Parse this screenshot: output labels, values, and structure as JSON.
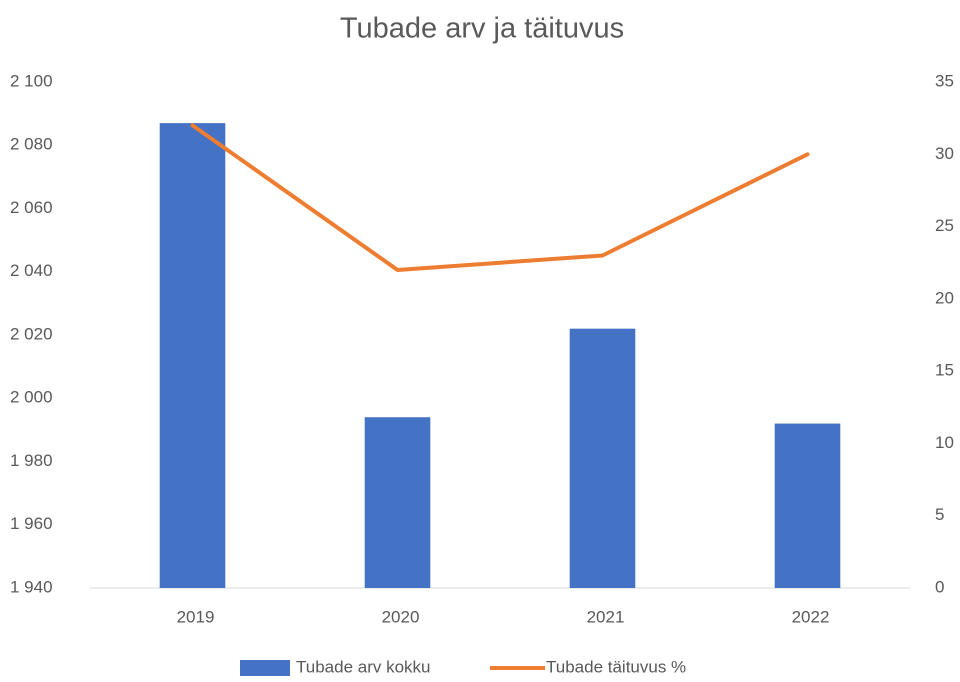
{
  "chart_data": {
    "type": "combo",
    "title": "Tubade arv ja täituvus",
    "categories": [
      "2019",
      "2020",
      "2021",
      "2022"
    ],
    "series": [
      {
        "name": "Tubade arv kokku",
        "type": "bar",
        "color": "#4472c4",
        "values": [
          2087,
          1994,
          2022,
          1992
        ]
      },
      {
        "name": "Tubade täituvus %",
        "type": "line",
        "color": "#ed7d31",
        "axis": "y2",
        "values": [
          32,
          22,
          23,
          30
        ]
      }
    ],
    "ylim": [
      1940,
      2100
    ],
    "yticks": [
      {
        "value": 1940,
        "label": "1 940"
      },
      {
        "value": 1960,
        "label": "1 960"
      },
      {
        "value": 1980,
        "label": "1 980"
      },
      {
        "value": 2000,
        "label": "2 000"
      },
      {
        "value": 2020,
        "label": "2 020"
      },
      {
        "value": 2040,
        "label": "2 040"
      },
      {
        "value": 2060,
        "label": "2 060"
      },
      {
        "value": 2080,
        "label": "2 080"
      },
      {
        "value": 2100,
        "label": "2 100"
      }
    ],
    "y2lim": [
      0,
      35
    ],
    "y2ticks": [
      0,
      5,
      10,
      15,
      20,
      25,
      30,
      35
    ],
    "grid": false,
    "legend": "bottom"
  }
}
